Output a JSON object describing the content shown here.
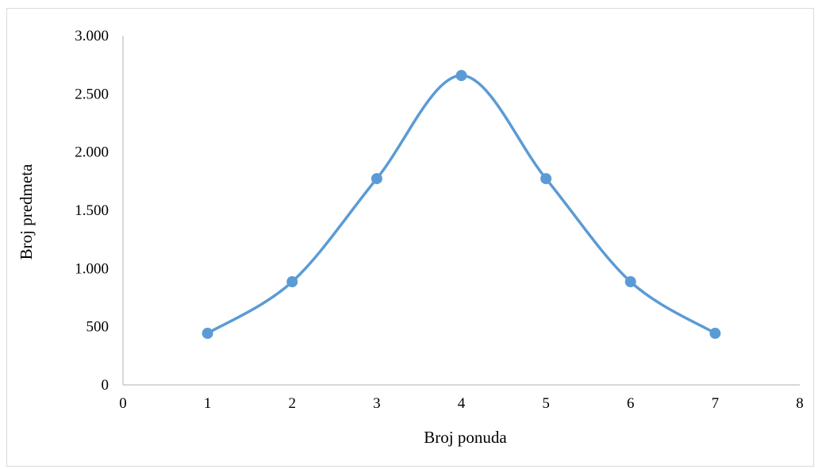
{
  "chart_data": {
    "type": "line",
    "smooth": true,
    "title": "",
    "xlabel": "Broj ponuda",
    "ylabel": "Broj predmeta",
    "xlim": [
      0,
      8
    ],
    "ylim": [
      0,
      3000
    ],
    "x_ticks": [
      0,
      1,
      2,
      3,
      4,
      5,
      6,
      7,
      8
    ],
    "x_tick_labels": [
      "0",
      "1",
      "2",
      "3",
      "4",
      "5",
      "6",
      "7",
      "8"
    ],
    "y_ticks": [
      0,
      500,
      1000,
      1500,
      2000,
      2500,
      3000
    ],
    "y_tick_labels": [
      "0",
      "500",
      "1.000",
      "1.500",
      "2.000",
      "2.500",
      "3.000"
    ],
    "grid": false,
    "legend": "none",
    "series": [
      {
        "color": "#5b9bd5",
        "marker": "circle",
        "x": [
          1,
          2,
          3,
          4,
          5,
          6,
          7
        ],
        "y": [
          443,
          886,
          1772,
          2658,
          1772,
          886,
          443
        ]
      }
    ]
  }
}
